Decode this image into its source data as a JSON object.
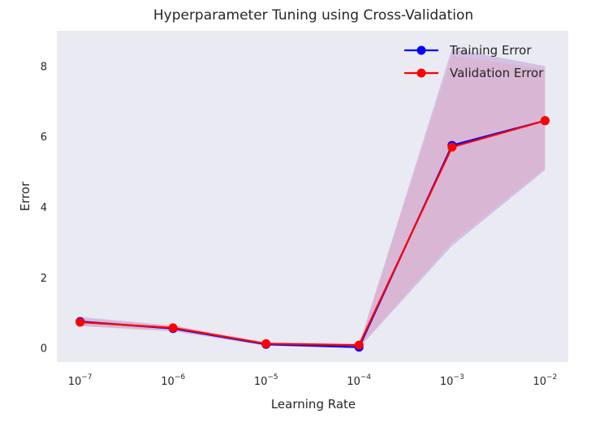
{
  "chart_data": {
    "type": "line",
    "title": "Hyperparameter Tuning using Cross-Validation",
    "xlabel": "Learning Rate",
    "ylabel": "Error",
    "xscale": "log",
    "x": [
      1e-07,
      1e-06,
      1e-05,
      0.0001,
      0.001,
      0.01
    ],
    "xticks": [
      {
        "base": "10",
        "exp": "−7"
      },
      {
        "base": "10",
        "exp": "−6"
      },
      {
        "base": "10",
        "exp": "−5"
      },
      {
        "base": "10",
        "exp": "−4"
      },
      {
        "base": "10",
        "exp": "−3"
      },
      {
        "base": "10",
        "exp": "−2"
      }
    ],
    "yticks": [
      "0",
      "2",
      "4",
      "6",
      "8"
    ],
    "ytick_values": [
      0,
      2,
      4,
      6,
      8
    ],
    "ylim": [
      -0.4,
      9.0
    ],
    "grid": false,
    "legend_position": "top-right",
    "background": "#eaeaf2",
    "series": [
      {
        "name": "Training Error",
        "color": "#0000ff",
        "values": [
          0.75,
          0.55,
          0.1,
          0.02,
          5.75,
          6.45
        ],
        "band_lower": [
          0.62,
          0.47,
          0.06,
          0.0,
          2.9,
          5.05
        ],
        "band_upper": [
          0.88,
          0.63,
          0.14,
          0.06,
          8.5,
          8.0
        ],
        "band_color": "#a679c8"
      },
      {
        "name": "Validation Error",
        "color": "#ff0000",
        "values": [
          0.73,
          0.57,
          0.12,
          0.08,
          5.7,
          6.45
        ],
        "band_lower": [
          0.63,
          0.5,
          0.08,
          0.03,
          3.0,
          5.1
        ],
        "band_upper": [
          0.83,
          0.64,
          0.16,
          0.13,
          8.3,
          7.9
        ],
        "band_color": "#e8a0b4"
      }
    ]
  }
}
